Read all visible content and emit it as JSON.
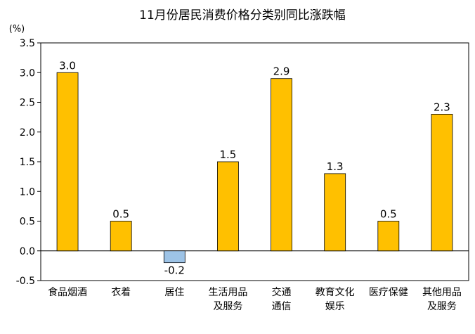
{
  "chart_data": {
    "type": "bar",
    "title": "11月份居民消费价格分类别同比涨跌幅",
    "unit_label": "(%)",
    "categories": [
      [
        "食品烟酒"
      ],
      [
        "衣着"
      ],
      [
        "居住"
      ],
      [
        "生活用品",
        "及服务"
      ],
      [
        "交通",
        "通信"
      ],
      [
        "教育文化",
        "娱乐"
      ],
      [
        "医疗保健"
      ],
      [
        "其他用品",
        "及服务"
      ]
    ],
    "values": [
      3.0,
      0.5,
      -0.2,
      1.5,
      2.9,
      1.3,
      0.5,
      2.3
    ],
    "data_labels": [
      "3.0",
      "0.5",
      "-0.2",
      "1.5",
      "2.9",
      "1.3",
      "0.5",
      "2.3"
    ],
    "ylim": [
      -0.5,
      3.5
    ],
    "yticks": [
      3.5,
      3.0,
      2.5,
      2.0,
      1.5,
      1.0,
      0.5,
      0.0,
      -0.5
    ],
    "ytick_labels": [
      "3.5",
      "3.0",
      "2.5",
      "2.0",
      "1.5",
      "1.0",
      "0.5",
      "0.0",
      "-0.5"
    ],
    "grid": false,
    "colors": {
      "positive": "#FFC000",
      "negative": "#9DC3E6",
      "bar_border": "#000000",
      "axis": "#000000"
    }
  }
}
